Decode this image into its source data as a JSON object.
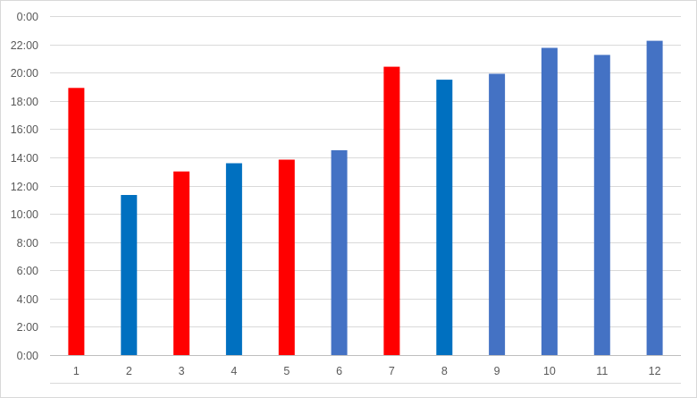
{
  "chart_data": {
    "type": "bar",
    "title": "",
    "xlabel": "",
    "ylabel": "",
    "ylim": [
      "0:00",
      "24:00"
    ],
    "y_ticks": [
      "0:00",
      "2:00",
      "4:00",
      "6:00",
      "8:00",
      "10:00",
      "12:00",
      "14:00",
      "16:00",
      "18:00",
      "20:00",
      "22:00",
      "0:00"
    ],
    "grid": true,
    "legend": "none",
    "categories": [
      "1",
      "2",
      "3",
      "4",
      "5",
      "6",
      "7",
      "8",
      "9",
      "10",
      "11",
      "12"
    ],
    "values": [
      "18:55",
      "11:20",
      "13:00",
      "13:35",
      "13:50",
      "14:30",
      "20:25",
      "19:30",
      "19:55",
      "21:45",
      "21:15",
      "22:15"
    ],
    "bar_colors": [
      "#ff0000",
      "#0070c0",
      "#ff0000",
      "#0070c0",
      "#ff0000",
      "#4472c4",
      "#ff0000",
      "#0070c0",
      "#4472c4",
      "#4472c4",
      "#4472c4",
      "#4472c4"
    ]
  }
}
